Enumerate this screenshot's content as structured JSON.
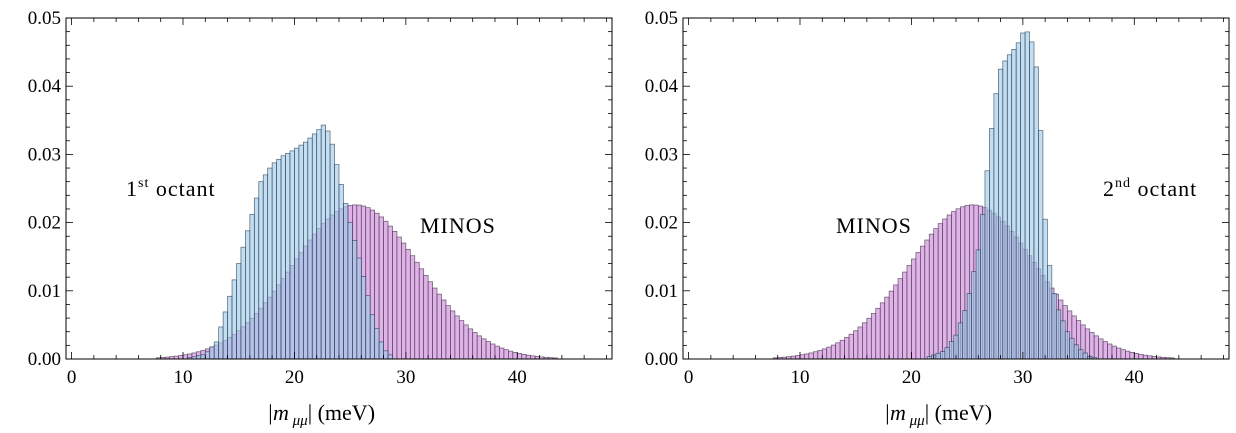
{
  "chart_data": [
    {
      "type": "bar",
      "panel": "left",
      "xlabel_prefix": "|m",
      "xlabel_sub": "μμ",
      "xlabel_suffix": "| (meV)",
      "xlim": [
        -0.5,
        48.5
      ],
      "ylim": [
        0,
        0.05
      ],
      "xticks": [
        0,
        10,
        20,
        30,
        40
      ],
      "yticks": [
        "0.00",
        "0.01",
        "0.02",
        "0.03",
        "0.04",
        "0.05"
      ],
      "bin_width": 0.4,
      "annotations": [
        {
          "base": "1",
          "sup": "st",
          "rest": " octant"
        },
        {
          "base": "MINOS",
          "sup": "",
          "rest": ""
        }
      ],
      "series": [
        {
          "name": "MINOS",
          "shape": "gaussian",
          "mean": 25.5,
          "sigma": 5.7,
          "peak": 0.0226,
          "range": [
            4,
            46
          ],
          "fill": "#d9a5e4",
          "stroke": "#3a2a40"
        },
        {
          "name": "1st octant",
          "shape": "points",
          "range": [
            10,
            29
          ],
          "points": [
            [
              10,
              0
            ],
            [
              12,
              0.0007
            ],
            [
              13,
              0.0025
            ],
            [
              14,
              0.008
            ],
            [
              15,
              0.014
            ],
            [
              16,
              0.02
            ],
            [
              17,
              0.026
            ],
            [
              18,
              0.0285
            ],
            [
              19,
              0.0298
            ],
            [
              20,
              0.0307
            ],
            [
              21,
              0.0318
            ],
            [
              22,
              0.0333
            ],
            [
              22.6,
              0.0343
            ],
            [
              23.2,
              0.033
            ],
            [
              24,
              0.027
            ],
            [
              25,
              0.02
            ],
            [
              26,
              0.0135
            ],
            [
              27,
              0.0065
            ],
            [
              28,
              0.0015
            ],
            [
              29,
              0
            ]
          ],
          "fill": "#9ec9e6",
          "stroke": "#1f3550"
        }
      ]
    },
    {
      "type": "bar",
      "panel": "right",
      "xlabel_prefix": "|m",
      "xlabel_sub": "μμ",
      "xlabel_suffix": "| (meV)",
      "xlim": [
        -0.5,
        48.5
      ],
      "ylim": [
        0,
        0.05
      ],
      "xticks": [
        0,
        10,
        20,
        30,
        40
      ],
      "yticks": [
        "0.00",
        "0.01",
        "0.02",
        "0.03",
        "0.04",
        "0.05"
      ],
      "bin_width": 0.4,
      "annotations": [
        {
          "base": "MINOS",
          "sup": "",
          "rest": ""
        },
        {
          "base": "2",
          "sup": "nd",
          "rest": " octant"
        }
      ],
      "series": [
        {
          "name": "MINOS",
          "shape": "gaussian",
          "mean": 25.5,
          "sigma": 5.7,
          "peak": 0.0226,
          "range": [
            4,
            46
          ],
          "fill": "#d9a5e4",
          "stroke": "#3a2a40"
        },
        {
          "name": "2nd octant",
          "shape": "points",
          "range": [
            21,
            37
          ],
          "points": [
            [
              21,
              0
            ],
            [
              23,
              0.0012
            ],
            [
              24,
              0.0035
            ],
            [
              25,
              0.008
            ],
            [
              26,
              0.016
            ],
            [
              26.5,
              0.0225
            ],
            [
              27,
              0.031
            ],
            [
              27.5,
              0.038
            ],
            [
              28,
              0.0425
            ],
            [
              28.5,
              0.044
            ],
            [
              29,
              0.045
            ],
            [
              29.5,
              0.046
            ],
            [
              30,
              0.0478
            ],
            [
              30.5,
              0.048
            ],
            [
              31,
              0.0455
            ],
            [
              31.3,
              0.0415
            ],
            [
              31.6,
              0.0335
            ],
            [
              32,
              0.0205
            ],
            [
              32.5,
              0.012
            ],
            [
              33,
              0.008
            ],
            [
              34,
              0.004
            ],
            [
              35,
              0.0016
            ],
            [
              36,
              0.0004
            ],
            [
              37,
              0
            ]
          ],
          "fill": "#9ec9e6",
          "stroke": "#1f3550"
        }
      ]
    }
  ]
}
